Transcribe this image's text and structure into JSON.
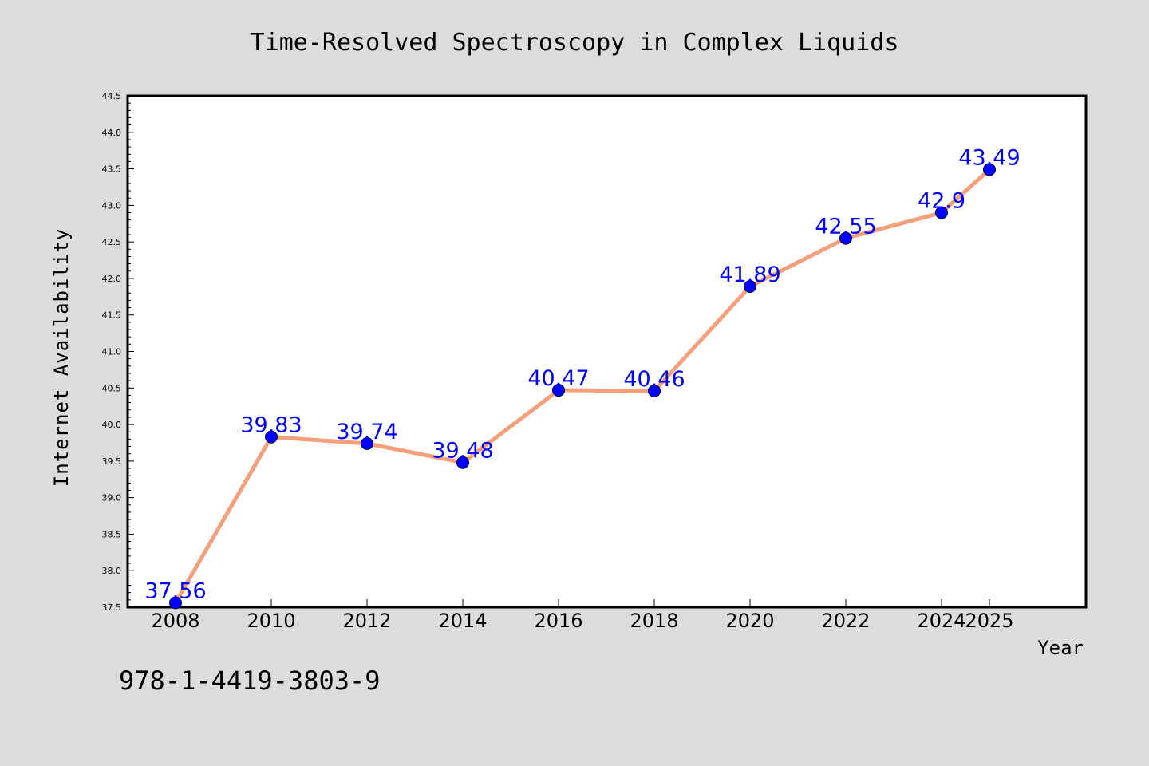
{
  "colors": {
    "background": "#dcdcdc",
    "plot_background": "#ffffff",
    "line": "#f4a07c",
    "marker": "#0000ff",
    "data_label": "#0000ff"
  },
  "isbn": "978-1-4419-3803-9",
  "chart_data": {
    "type": "line",
    "title": "Time-Resolved Spectroscopy in Complex Liquids",
    "xlabel": "Year",
    "ylabel": "Internet Availability",
    "categories": [
      "2008",
      "2010",
      "2012",
      "2014",
      "2016",
      "2018",
      "2020",
      "2022",
      "2024",
      "2025"
    ],
    "series": [
      {
        "values": [
          37.56,
          39.83,
          39.74,
          39.48,
          40.47,
          40.46,
          41.89,
          42.55,
          42.9,
          43.49
        ],
        "labels": [
          "37.56",
          "39.83",
          "39.74",
          "39.48",
          "40.47",
          "40.46",
          "41.89",
          "42.55",
          "42.9",
          "43.49"
        ]
      }
    ],
    "ylim": [
      37.5,
      44.5
    ],
    "yticks": [
      "37.5",
      "38.0",
      "38.5",
      "39.0",
      "39.5",
      "40.0",
      "40.5",
      "41.0",
      "41.5",
      "42.0",
      "42.5",
      "43.0",
      "43.5",
      "44.0",
      "44.5"
    ],
    "grid": false,
    "legend": "none",
    "data_labels": true
  }
}
